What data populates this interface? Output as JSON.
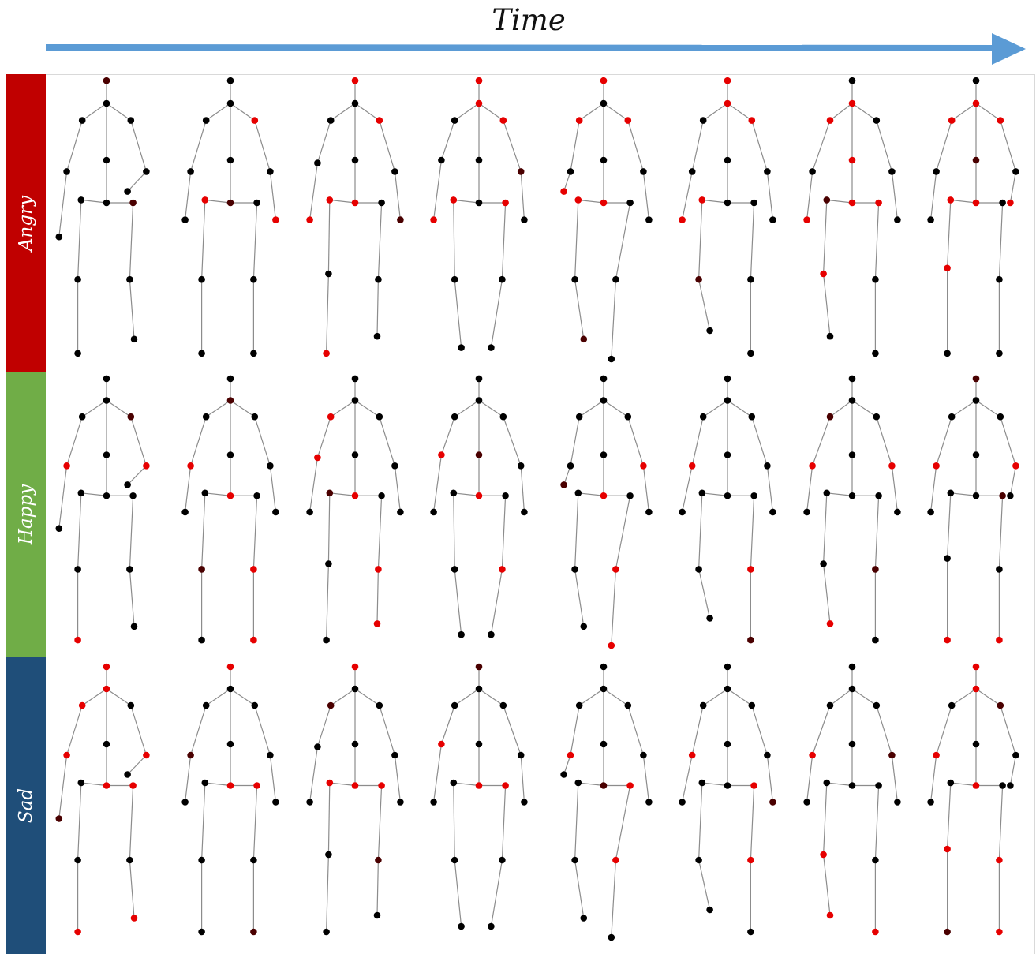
{
  "header": {
    "time_label": "Time",
    "arrow_color": "#5b9bd5"
  },
  "rows": [
    {
      "label": "Angry",
      "band_color": "#c00000",
      "frames_hot": [
        [],
        [
          3,
          7,
          10
        ],
        [
          0,
          3,
          6,
          9,
          10,
          14
        ],
        [
          0,
          1,
          3,
          6,
          10,
          11
        ],
        [
          0,
          2,
          3,
          6,
          9,
          10
        ],
        [
          0,
          1,
          3,
          6,
          10
        ],
        [
          1,
          2,
          6,
          8,
          9,
          11,
          12
        ],
        [
          1,
          2,
          3,
          7,
          9,
          10,
          12
        ]
      ]
    },
    {
      "label": "Happy",
      "band_color": "#70ad47",
      "frames_hot": [
        [
          4,
          5,
          14,
          16
        ],
        [
          4,
          9,
          13,
          15
        ],
        [
          2,
          4,
          9,
          13,
          15
        ],
        [
          4,
          9,
          13
        ],
        [
          5,
          9,
          13,
          15,
          16
        ],
        [
          4,
          13,
          16
        ],
        [
          4,
          5,
          14
        ],
        [
          4,
          5,
          14,
          15
        ]
      ]
    },
    {
      "label": "Sad",
      "band_color": "#1f4e79",
      "frames_hot": [
        [
          0,
          1,
          2,
          4,
          5,
          9,
          11,
          14,
          15
        ],
        [
          0,
          9,
          11
        ],
        [
          0,
          9,
          10,
          11
        ],
        [
          4,
          9,
          11
        ],
        [
          4,
          11,
          13
        ],
        [
          4,
          11,
          13
        ],
        [
          4,
          12,
          14,
          15
        ],
        [
          0,
          1,
          4,
          9,
          12,
          13,
          15
        ]
      ]
    }
  ]
}
